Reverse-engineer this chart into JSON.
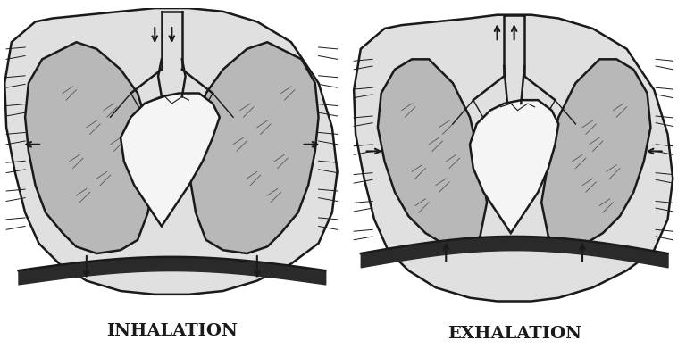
{
  "background_color": "#ffffff",
  "label_inhalation": "INHALATION",
  "label_exhalation": "EXHALATION",
  "label_fontsize": 14,
  "label_fontweight": "bold",
  "fig_width": 7.68,
  "fig_height": 4.0,
  "dpi": 100,
  "line_color": "#1a1a1a",
  "fill_lung_color": "#c8c8c8",
  "fill_chest_color": "#e8e8e8",
  "fill_heart_color": "#f0f0f0",
  "fill_diaphragm_color": "#1a1a1a"
}
